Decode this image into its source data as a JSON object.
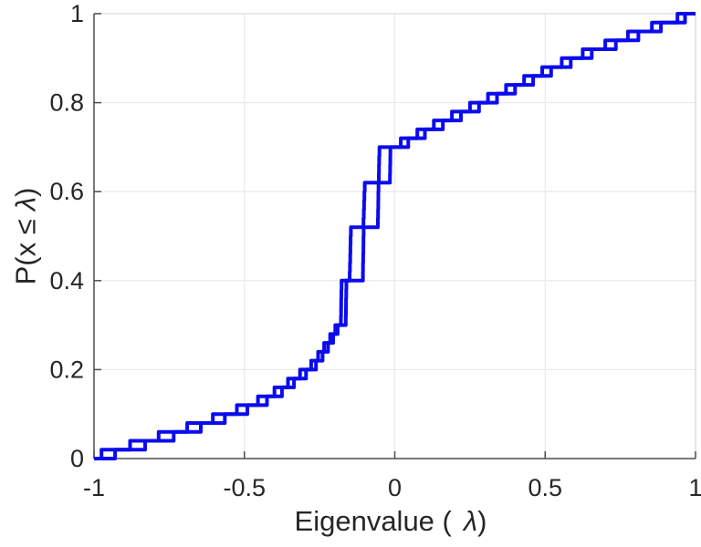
{
  "chart_data": {
    "type": "line",
    "subtype": "ecdf-staircase",
    "title": "",
    "xlabel_parts": [
      "Eigenvalue (",
      "λ",
      ")"
    ],
    "ylabel_parts": [
      "P(x ≤",
      "λ",
      ")"
    ],
    "xlim": [
      -1,
      1
    ],
    "ylim": [
      0,
      1
    ],
    "grid": true,
    "legend": "none",
    "xticks": [
      -1,
      -0.5,
      0,
      0.5,
      1
    ],
    "xtick_labels": [
      "-1",
      "-0.5",
      "0",
      "0.5",
      "1"
    ],
    "yticks": [
      0,
      0.2,
      0.4,
      0.6,
      0.8,
      1
    ],
    "ytick_labels": [
      "0",
      "0.2",
      "0.4",
      "0.6",
      "0.8",
      "1"
    ],
    "series": [
      {
        "name": "empirical-cdf-1",
        "color": "#0b0bee",
        "eigenvalues": [
          -0.93,
          -0.83,
          -0.735,
          -0.645,
          -0.565,
          -0.49,
          -0.425,
          -0.375,
          -0.335,
          -0.295,
          -0.262,
          -0.24,
          -0.222,
          -0.205,
          -0.19,
          -0.179,
          -0.1785,
          -0.178,
          -0.1775,
          -0.177,
          -0.15,
          -0.149,
          -0.148,
          -0.1475,
          -0.147,
          -0.146,
          -0.104,
          -0.103,
          -0.102,
          -0.101,
          -0.1,
          -0.053,
          -0.0525,
          -0.052,
          -0.051,
          0.02,
          0.075,
          0.13,
          0.19,
          0.25,
          0.31,
          0.37,
          0.43,
          0.49,
          0.555,
          0.625,
          0.7,
          0.775,
          0.855,
          0.94
        ]
      },
      {
        "name": "empirical-cdf-2",
        "color": "#0b0bee",
        "eigenvalues": [
          -0.975,
          -0.88,
          -0.785,
          -0.69,
          -0.605,
          -0.525,
          -0.455,
          -0.4,
          -0.355,
          -0.315,
          -0.278,
          -0.255,
          -0.235,
          -0.215,
          -0.198,
          -0.163,
          -0.1625,
          -0.162,
          -0.1615,
          -0.161,
          -0.106,
          -0.1055,
          -0.105,
          -0.1045,
          -0.104,
          -0.1035,
          -0.056,
          -0.0555,
          -0.055,
          -0.0545,
          -0.054,
          -0.016,
          -0.0155,
          -0.015,
          -0.0145,
          0.045,
          0.1,
          0.16,
          0.22,
          0.28,
          0.34,
          0.4,
          0.46,
          0.52,
          0.585,
          0.655,
          0.735,
          0.81,
          0.885,
          0.965
        ]
      }
    ]
  },
  "style": {
    "background": "#ffffff",
    "line_color": "#0b0bee",
    "line_width": 4,
    "axis_color": "#4d4d4d",
    "grid_color": "#ebebeb",
    "box_color": "#d9d9d9",
    "text_color": "#262626"
  }
}
